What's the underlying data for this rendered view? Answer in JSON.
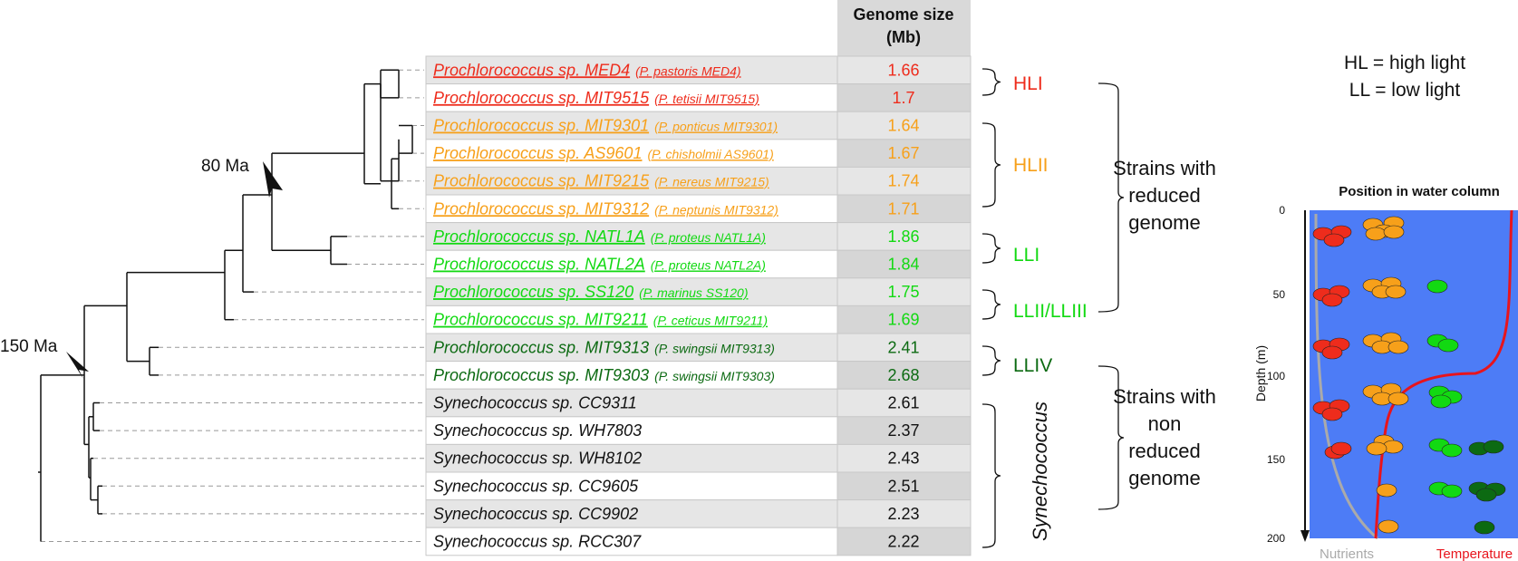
{
  "genome_size_header": [
    "Genome size",
    "(Mb)"
  ],
  "colors": {
    "HL1": "#ee2c1c",
    "HL2": "#f7a01a",
    "LL": "#12d912",
    "LLIV": "#0c6a12",
    "syn": "#111111",
    "water": "#4d7cf6",
    "nutrients": "#aaaaaa",
    "temperature": "#e8141c"
  },
  "strains": [
    {
      "name": "Prochlorococcus sp. MED4",
      "alt": "(P. pastoris MED4)",
      "size": "1.66",
      "group": "HL1"
    },
    {
      "name": "Prochlorococcus sp. MIT9515",
      "alt": "(P. tetisii MIT9515)",
      "size": "1.7",
      "group": "HL1"
    },
    {
      "name": "Prochlorococcus sp. MIT9301",
      "alt": "(P. ponticus MIT9301)",
      "size": "1.64",
      "group": "HL2"
    },
    {
      "name": "Prochlorococcus sp. AS9601",
      "alt": "(P. chisholmii AS9601)",
      "size": "1.67",
      "group": "HL2"
    },
    {
      "name": "Prochlorococcus sp. MIT9215",
      "alt": "(P. nereus MIT9215)",
      "size": "1.74",
      "group": "HL2"
    },
    {
      "name": "Prochlorococcus sp. MIT9312",
      "alt": "(P. neptunis MIT9312)",
      "size": "1.71",
      "group": "HL2"
    },
    {
      "name": "Prochlorococcus sp. NATL1A",
      "alt": "(P. proteus NATL1A)",
      "size": "1.86",
      "group": "LL"
    },
    {
      "name": "Prochlorococcus sp. NATL2A",
      "alt": "(P. proteus NATL2A)",
      "size": "1.84",
      "group": "LL"
    },
    {
      "name": "Prochlorococcus sp. SS120",
      "alt": "(P. marinus SS120)",
      "size": "1.75",
      "group": "LL"
    },
    {
      "name": "Prochlorococcus sp. MIT9211",
      "alt": "(P. ceticus MIT9211)",
      "size": "1.69",
      "group": "LL"
    },
    {
      "name": "Prochlorococcus sp. MIT9313",
      "alt": "(P. swingsii MIT9313)",
      "size": "2.41",
      "group": "LLIV"
    },
    {
      "name": "Prochlorococcus sp. MIT9303",
      "alt": "(P. swingsii MIT9303)",
      "size": "2.68",
      "group": "LLIV"
    },
    {
      "name": "Synechococcus sp. CC9311",
      "alt": "",
      "size": "2.61",
      "group": "syn"
    },
    {
      "name": "Synechococcus sp. WH7803",
      "alt": "",
      "size": "2.37",
      "group": "syn"
    },
    {
      "name": "Synechococcus sp. WH8102",
      "alt": "",
      "size": "2.43",
      "group": "syn"
    },
    {
      "name": "Synechococcus sp. CC9605",
      "alt": "",
      "size": "2.51",
      "group": "syn"
    },
    {
      "name": "Synechococcus sp. CC9902",
      "alt": "",
      "size": "2.23",
      "group": "syn"
    },
    {
      "name": "Synechococcus sp. RCC307",
      "alt": "",
      "size": "2.22",
      "group": "syn"
    }
  ],
  "clades": [
    "HLI",
    "HLII",
    "LLI",
    "LLII/LLIII",
    "LLIV",
    "Synechococcus"
  ],
  "node_labels": {
    "ma80": "80 Ma",
    "ma150": "150 Ma"
  },
  "groups": {
    "reduced": [
      "Strains with",
      "reduced",
      "genome"
    ],
    "nonreduced": [
      "Strains with",
      "non",
      "reduced",
      "genome"
    ]
  },
  "legend": {
    "hl": "HL = high light",
    "ll": "LL = low light"
  },
  "water_column": {
    "title": "Position in water column",
    "ylabel": "Depth (m)",
    "ticks": [
      "0",
      "50",
      "100",
      "150",
      "200"
    ],
    "nutrients_label": "Nutrients",
    "temperature_label": "Temperature"
  }
}
